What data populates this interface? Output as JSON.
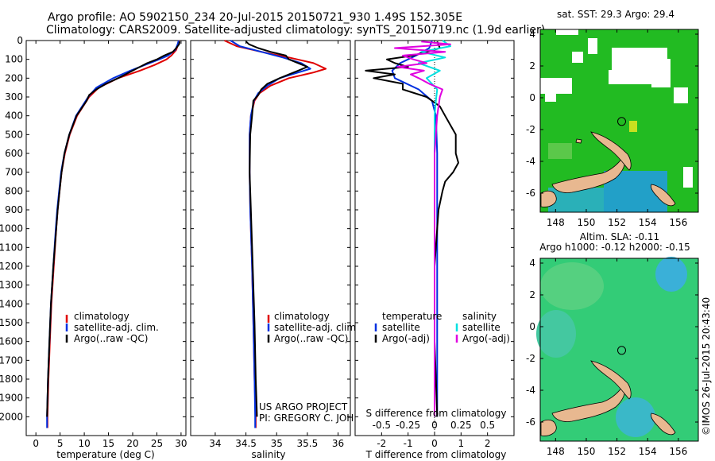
{
  "title": {
    "line1": "Argo profile: AO 5902150_234 20-Jul-2015 20150721_930 1.49S 152.305E",
    "line2": "Climatology: CARS2009. Satellite-adjusted climatology: synTS_20150719.nc (1.9d earlier)"
  },
  "colors": {
    "climatology": "#e00000",
    "satellite": "#0030e0",
    "argo": "#000000",
    "sat_salinity": "#00e0e0",
    "argo_salinity": "#e000e0",
    "land": "#e8b890",
    "sst_field": "#22bb22",
    "sla_field": "#33cc77"
  },
  "chart_data": [
    {
      "id": "temperature",
      "type": "line",
      "xlabel": "temperature (deg C)",
      "ylabel": "depth",
      "xlim": [
        -2,
        31
      ],
      "ylim": [
        2100,
        0
      ],
      "xticks": [
        0,
        5,
        10,
        15,
        20,
        25,
        30
      ],
      "yticks": [
        0,
        100,
        200,
        300,
        400,
        500,
        600,
        700,
        800,
        900,
        1000,
        1100,
        1200,
        1300,
        1400,
        1500,
        1600,
        1700,
        1800,
        1900,
        2000
      ],
      "legend": [
        "climatology",
        "satellite-adj. clim.",
        "Argo(..raw -QC)"
      ],
      "legend_position": "bottom-center",
      "series": [
        {
          "name": "climatology",
          "color": "#e00000",
          "y": [
            0,
            20,
            50,
            80,
            100,
            130,
            160,
            200,
            250,
            300,
            400,
            500,
            600,
            700,
            800,
            900,
            1000,
            1200,
            1400,
            1600,
            1800,
            2000,
            2060
          ],
          "x": [
            29.6,
            29.4,
            29.0,
            28.0,
            27.0,
            24.5,
            21.5,
            17.0,
            13.0,
            11.0,
            8.5,
            7.0,
            6.0,
            5.3,
            4.9,
            4.5,
            4.2,
            3.7,
            3.2,
            2.9,
            2.6,
            2.4,
            2.4
          ]
        },
        {
          "name": "satellite-adj. clim.",
          "color": "#0030e0",
          "y": [
            0,
            20,
            50,
            80,
            100,
            130,
            160,
            200,
            250,
            300,
            400,
            500,
            600,
            700,
            800,
            900,
            1000,
            1200,
            1400,
            1600,
            1800,
            2000,
            2060
          ],
          "x": [
            29.5,
            29.3,
            28.8,
            27.3,
            25.5,
            22.5,
            19.5,
            16.0,
            12.5,
            10.8,
            8.3,
            6.9,
            5.9,
            5.2,
            4.8,
            4.4,
            4.1,
            3.6,
            3.1,
            2.8,
            2.5,
            2.3,
            2.3
          ]
        },
        {
          "name": "Argo(..raw -QC)",
          "color": "#000000",
          "y": [
            5,
            20,
            40,
            60,
            80,
            100,
            120,
            140,
            160,
            180,
            200,
            230,
            260,
            290,
            320,
            400,
            500,
            600,
            700,
            800,
            900,
            1000,
            1200,
            1400,
            1600,
            1800,
            2000
          ],
          "x": [
            29.7,
            29.6,
            29.0,
            28.3,
            26.5,
            25.0,
            23.0,
            21.5,
            20.0,
            18.5,
            17.0,
            14.5,
            12.5,
            11.0,
            10.5,
            8.4,
            6.9,
            5.9,
            5.3,
            4.9,
            4.5,
            4.2,
            3.6,
            3.1,
            2.8,
            2.5,
            2.3
          ]
        }
      ]
    },
    {
      "id": "salinity",
      "type": "line",
      "xlabel": "salinity",
      "xlim": [
        33.6,
        36.2
      ],
      "ylim": [
        2100,
        0
      ],
      "xticks": [
        34,
        34.5,
        35,
        35.5,
        36
      ],
      "legend": [
        "climatology",
        "satellite-adj. clim.",
        "Argo(..raw -QC)"
      ],
      "legend_position": "bottom-right",
      "annotation": [
        "US ARGO PROJECT",
        "PI: GREGORY C. JOHNSON"
      ],
      "series": [
        {
          "name": "climatology",
          "color": "#e00000",
          "y": [
            0,
            30,
            60,
            90,
            120,
            150,
            170,
            200,
            240,
            280,
            320,
            400,
            500,
            700,
            900,
            1200,
            1500,
            1800,
            2000,
            2060
          ],
          "x": [
            34.15,
            34.35,
            34.75,
            35.2,
            35.6,
            35.8,
            35.6,
            35.2,
            34.9,
            34.72,
            34.64,
            34.58,
            34.56,
            34.56,
            34.57,
            34.6,
            34.62,
            34.64,
            34.66,
            34.66
          ]
        },
        {
          "name": "satellite-adj. clim.",
          "color": "#0030e0",
          "y": [
            0,
            30,
            60,
            90,
            120,
            150,
            170,
            200,
            240,
            280,
            320,
            400,
            500,
            700,
            900,
            1200,
            1500,
            1800,
            2000,
            2060
          ],
          "x": [
            34.25,
            34.4,
            34.75,
            35.1,
            35.4,
            35.55,
            35.35,
            35.05,
            34.85,
            34.7,
            34.63,
            34.58,
            34.56,
            34.56,
            34.57,
            34.6,
            34.62,
            34.64,
            34.65,
            34.65
          ]
        },
        {
          "name": "Argo(..raw -QC)",
          "color": "#000000",
          "y": [
            5,
            20,
            40,
            60,
            80,
            100,
            120,
            140,
            160,
            180,
            200,
            230,
            260,
            290,
            320,
            400,
            500,
            700,
            900,
            1200,
            1500,
            1800,
            2000
          ],
          "x": [
            34.5,
            34.55,
            34.7,
            34.9,
            35.15,
            35.2,
            35.35,
            35.5,
            35.35,
            35.2,
            35.05,
            34.85,
            34.75,
            34.7,
            34.62,
            34.6,
            34.57,
            34.56,
            34.58,
            34.61,
            34.64,
            34.66,
            34.68
          ]
        }
      ]
    },
    {
      "id": "differences",
      "type": "line",
      "xlabel": "T difference from climatology",
      "xlabel_top": "S difference from climatology",
      "xlim": [
        -3,
        3
      ],
      "ylim": [
        2100,
        0
      ],
      "xticks": [
        -2,
        -1,
        0,
        1,
        2
      ],
      "xticks_top": [
        "-0.5",
        "-0.25",
        "0",
        "0.25",
        "0.5"
      ],
      "legend_titles": [
        "temperature",
        "salinity"
      ],
      "legend": [
        "satellite",
        "Argo(-adj)",
        "satellite",
        "Argo(-adj)"
      ],
      "legend_position": "center",
      "series": [
        {
          "name": "T satellite",
          "color": "#0030e0",
          "y": [
            0,
            40,
            80,
            120,
            160,
            200,
            260,
            320,
            400,
            600,
            800,
            1000,
            1400,
            1800,
            2000
          ],
          "x": [
            -0.1,
            -0.2,
            -0.7,
            -1.3,
            -1.6,
            -1.5,
            -0.6,
            -0.1,
            0.05,
            0.1,
            0.1,
            0.1,
            0.1,
            0.1,
            0.1
          ]
        },
        {
          "name": "T Argo(-adj)",
          "color": "#000000",
          "y": [
            5,
            40,
            80,
            100,
            120,
            140,
            160,
            180,
            200,
            230,
            260,
            300,
            350,
            400,
            450,
            500,
            550,
            600,
            650,
            700,
            750,
            800,
            900,
            1000,
            1200,
            1400,
            1600,
            1800,
            2000
          ],
          "x": [
            0.1,
            0.2,
            -0.8,
            -1.8,
            -1.5,
            -1.0,
            -2.6,
            -1.5,
            -2.3,
            -1.2,
            -1.2,
            -0.3,
            0.2,
            0.4,
            0.6,
            0.8,
            0.8,
            0.8,
            0.9,
            0.7,
            0.4,
            0.3,
            0.15,
            0.1,
            0.0,
            0.0,
            0.0,
            0.05,
            0.1
          ]
        },
        {
          "name": "S satellite",
          "color": "#00e0e0",
          "y": [
            0,
            30,
            60,
            90,
            120,
            160,
            200,
            260,
            320,
            400,
            600,
            1000,
            1400,
            1800,
            2000
          ],
          "x": [
            0.3,
            0.6,
            -0.5,
            0.4,
            -0.6,
            0.2,
            -0.3,
            0.1,
            0.05,
            0.0,
            0.0,
            0.0,
            0.0,
            0.0,
            0.0
          ]
        },
        {
          "name": "S Argo(-adj)",
          "color": "#e000e0",
          "y": [
            5,
            20,
            40,
            60,
            80,
            100,
            120,
            140,
            160,
            180,
            200,
            230,
            260,
            300,
            400,
            600,
            800,
            1000,
            1200,
            1400,
            1600,
            1800,
            2000
          ],
          "x": [
            -0.5,
            0.6,
            -1.5,
            0.4,
            -1.2,
            -0.8,
            -0.3,
            -1.4,
            -0.4,
            -0.9,
            -0.6,
            -0.2,
            0.3,
            0.2,
            0.1,
            0.0,
            0.0,
            0.0,
            0.0,
            0.0,
            0.0,
            0.0,
            0.0
          ]
        }
      ]
    }
  ],
  "maps": {
    "sst": {
      "title": "sat. SST: 29.3 Argo: 29.4",
      "xticks": [
        "148",
        "150",
        "152",
        "154",
        "156"
      ],
      "yticks": [
        "4",
        "2",
        "0",
        "-2",
        "-4",
        "-6"
      ],
      "xlim": [
        147,
        157.3
      ],
      "ylim": [
        -7.2,
        4.3
      ],
      "argo_lon": 152.305,
      "argo_lat": -1.49
    },
    "sla": {
      "title_line1": "Altim. SLA: -0.11",
      "title_line2": "Argo h1000: -0.12 h2000: -0.15",
      "xticks": [
        "148",
        "150",
        "152",
        "154",
        "156"
      ],
      "yticks": [
        "4",
        "2",
        "0",
        "-2",
        "-4",
        "-6"
      ],
      "xlim": [
        147,
        157.3
      ],
      "ylim": [
        -7.2,
        4.3
      ],
      "argo_lon": 152.305,
      "argo_lat": -1.49
    }
  },
  "credit": "©IMOS 26-Jul-2015 20:43:40"
}
